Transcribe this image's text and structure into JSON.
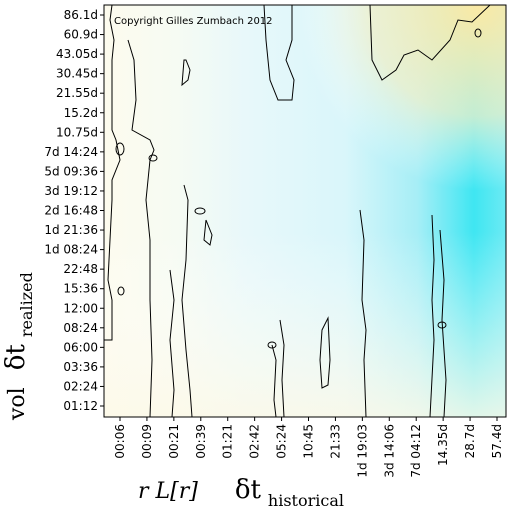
{
  "chart_data": {
    "type": "heatmap",
    "copyright": "Copyright Gilles Zumbach 2012",
    "xlabel": {
      "prefix": "r L[r]",
      "delta": "δt",
      "sub": "historical"
    },
    "ylabel": {
      "prefix": "vol",
      "delta": "δt",
      "sub": "realized"
    },
    "x_ticks": [
      "00:06",
      "00:09",
      "00:21",
      "00:39",
      "01:21",
      "02:42",
      "05:24",
      "10:45",
      "21:33",
      "1d 19:03",
      "3d 14:06",
      "7d 04:12",
      "14.35d",
      "28.7d",
      "57.4d"
    ],
    "y_ticks": [
      "86.1d",
      "60.9d",
      "43.05d",
      "30.45d",
      "21.55d",
      "15.2d",
      "10.75d",
      "7d 14:24",
      "5d 09:36",
      "3d 19:12",
      "2d 16:48",
      "1d 21:36",
      "1d 08:24",
      "22:48",
      "15:36",
      "12:00",
      "08:24",
      "06:00",
      "03:36",
      "02:24",
      "01:12"
    ],
    "colors": {
      "low": "#fbf8e6",
      "mid": "#e6f8f8",
      "high": "#1de8f2",
      "warm": "#fbedb0",
      "contour": "#000000"
    },
    "contour_levels": 1,
    "grid": false
  }
}
